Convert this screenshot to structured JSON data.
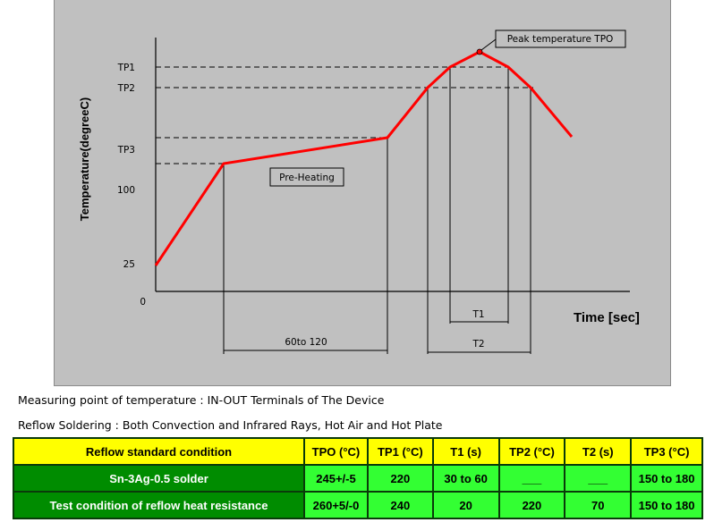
{
  "chart_data": {
    "type": "line",
    "title": "",
    "xlabel": "Time [sec]",
    "ylabel": "Temperature(degreeC)",
    "y_ticks": [
      "TP1",
      "TP2",
      "TP3",
      "100",
      "25",
      "0"
    ],
    "series": [
      {
        "color": "#ff0000",
        "points": [
          {
            "stage": "start",
            "y": "25"
          },
          {
            "stage": "pre-heat start",
            "y": "TP3 low"
          },
          {
            "stage": "pre-heat end (60 to 120 s)",
            "y": "TP3 high"
          },
          {
            "stage": "rise",
            "y": "TP2"
          },
          {
            "stage": "rise",
            "y": "TP1"
          },
          {
            "stage": "peak",
            "y": "TPO"
          },
          {
            "stage": "fall",
            "y": "TP1"
          },
          {
            "stage": "fall",
            "y": "TP2"
          },
          {
            "stage": "cool",
            "y": "below TP2"
          }
        ]
      }
    ],
    "annotations": {
      "preheat_label": "Pre-Heating",
      "peak_label": "Peak temperature TPO",
      "preheat_interval": "60to 120",
      "t1_label": "T1",
      "t2_label": "T2"
    },
    "grid": false
  },
  "notes": {
    "measuring_point": "Measuring point of temperature : IN-OUT Terminals of The Device",
    "reflow_method": "Reflow Soldering : Both Convection and Infrared Rays, Hot Air and Hot Plate"
  },
  "table": {
    "headers": [
      "Reflow standard condition",
      "TPO (°C)",
      "TP1 (°C)",
      "T1 (s)",
      "TP2 (°C)",
      "T2 (s)",
      "TP3 (°C)"
    ],
    "rows": [
      [
        "Sn-3Ag-0.5 solder",
        "245+/-5",
        "220",
        "30 to 60",
        "___",
        "___",
        "150 to 180"
      ],
      [
        "Test condition of reflow heat resistance",
        "260+5/-0",
        "240",
        "20",
        "220",
        "70",
        "150 to 180"
      ]
    ],
    "header_color": "#ffff00",
    "rowhead_color": "#008c00",
    "cell_color": "#33ff33"
  }
}
